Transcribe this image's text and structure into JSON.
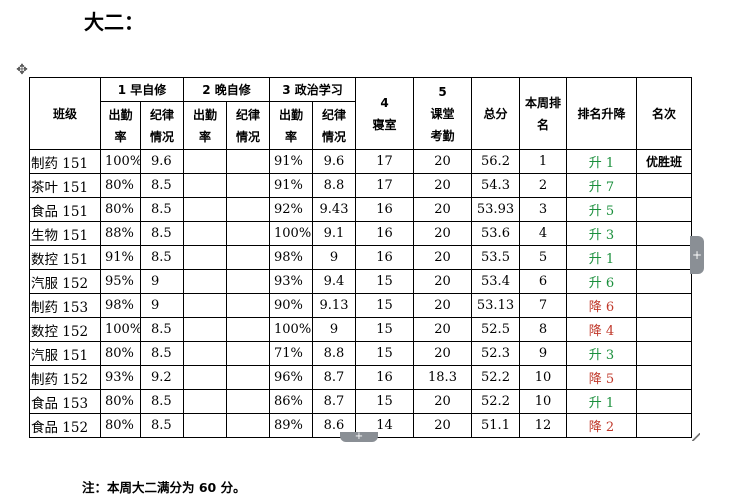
{
  "heading": "大二：",
  "table": {
    "header": {
      "class": "班级",
      "morning": "1 早自修",
      "evening": "2 晚自修",
      "politics": "3 政治学习",
      "dorm": "4\n寝室",
      "classroom": "5\n课堂\n考勤",
      "total": "总分",
      "rank": "本周排\n名",
      "change": "排名升降",
      "title": "名次",
      "attendance": "出勤\n率",
      "discipline": "纪律\n情况"
    },
    "rows": [
      {
        "class": "制药 151",
        "m_att": "100%",
        "m_dis": "9.6",
        "e_att": "",
        "e_dis": "",
        "p_att": "91%",
        "p_dis": "9.6",
        "dorm": "17",
        "classroom": "20",
        "total": "56.2",
        "rank": "1",
        "change": "升 1",
        "title": "优胜班"
      },
      {
        "class": "茶叶 151",
        "m_att": "80%",
        "m_dis": "8.5",
        "e_att": "",
        "e_dis": "",
        "p_att": "91%",
        "p_dis": "8.8",
        "dorm": "17",
        "classroom": "20",
        "total": "54.3",
        "rank": "2",
        "change": "升 7",
        "title": ""
      },
      {
        "class": "食品 151",
        "m_att": "80%",
        "m_dis": "8.5",
        "e_att": "",
        "e_dis": "",
        "p_att": "92%",
        "p_dis": "9.43",
        "dorm": "16",
        "classroom": "20",
        "total": "53.93",
        "rank": "3",
        "change": "升 5",
        "title": ""
      },
      {
        "class": "生物 151",
        "m_att": "88%",
        "m_dis": "8.5",
        "e_att": "",
        "e_dis": "",
        "p_att": "100%",
        "p_dis": "9.1",
        "dorm": "16",
        "classroom": "20",
        "total": "53.6",
        "rank": "4",
        "change": "升 3",
        "title": ""
      },
      {
        "class": "数控 151",
        "m_att": "91%",
        "m_dis": "8.5",
        "e_att": "",
        "e_dis": "",
        "p_att": "98%",
        "p_dis": "9",
        "dorm": "16",
        "classroom": "20",
        "total": "53.5",
        "rank": "5",
        "change": "升 1",
        "title": ""
      },
      {
        "class": "汽服 152",
        "m_att": "95%",
        "m_dis": "9",
        "e_att": "",
        "e_dis": "",
        "p_att": "93%",
        "p_dis": "9.4",
        "dorm": "15",
        "classroom": "20",
        "total": "53.4",
        "rank": "6",
        "change": "升 6",
        "title": ""
      },
      {
        "class": "制药  153",
        "m_att": "98%",
        "m_dis": "9",
        "e_att": "",
        "e_dis": "",
        "p_att": "90%",
        "p_dis": "9.13",
        "dorm": "15",
        "classroom": "20",
        "total": "53.13",
        "rank": "7",
        "change": "降 6",
        "title": ""
      },
      {
        "class": "数控 152",
        "m_att": "100%",
        "m_dis": "8.5",
        "e_att": "",
        "e_dis": "",
        "p_att": "100%",
        "p_dis": "9",
        "dorm": "15",
        "classroom": "20",
        "total": "52.5",
        "rank": "8",
        "change": "降 4",
        "title": ""
      },
      {
        "class": "汽服 151",
        "m_att": "80%",
        "m_dis": "8.5",
        "e_att": "",
        "e_dis": "",
        "p_att": "71%",
        "p_dis": "8.8",
        "dorm": "15",
        "classroom": "20",
        "total": "52.3",
        "rank": "9",
        "change": "升 3",
        "title": ""
      },
      {
        "class": "制药 152",
        "m_att": "93%",
        "m_dis": "9.2",
        "e_att": "",
        "e_dis": "",
        "p_att": "96%",
        "p_dis": "8.7",
        "dorm": "16",
        "classroom": "18.3",
        "total": "52.2",
        "rank": "10",
        "change": "降 5",
        "title": ""
      },
      {
        "class": "食品 153",
        "m_att": "80%",
        "m_dis": "8.5",
        "e_att": "",
        "e_dis": "",
        "p_att": "86%",
        "p_dis": "8.7",
        "dorm": "15",
        "classroom": "20",
        "total": "52.2",
        "rank": "10",
        "change": "升 1",
        "title": ""
      },
      {
        "class": "食品 152",
        "m_att": "80%",
        "m_dis": "8.5",
        "e_att": "",
        "e_dis": "",
        "p_att": "89%",
        "p_dis": "8.6",
        "dorm": "14",
        "classroom": "20",
        "total": "51.1",
        "rank": "12",
        "change": "降 2",
        "title": ""
      }
    ]
  },
  "note": "注：本周大二满分为 60 分。",
  "icons": {
    "move_handle": "move-handle-icon",
    "add_column": "plus-icon",
    "add_row": "plus-icon",
    "resize": "resize-handle-icon"
  },
  "colors": {
    "rise": "#1a8f3c",
    "fall": "#c0392b",
    "handle": "#8a8f95"
  }
}
